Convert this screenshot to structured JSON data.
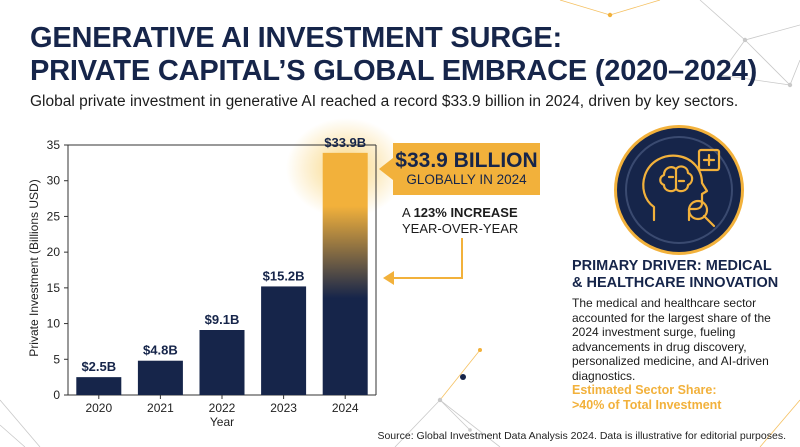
{
  "header": {
    "title_line1": "GENERATIVE AI INVESTMENT SURGE:",
    "title_line2": "PRIVATE CAPITAL’S GLOBAL EMBRACE (2020–2024)",
    "subtitle": "Global private investment in generative AI reached a record $33.9 billion in 2024, driven by key sectors."
  },
  "chart_data": {
    "type": "bar",
    "categories": [
      "2020",
      "2021",
      "2022",
      "2023",
      "2024"
    ],
    "values": [
      2.5,
      4.8,
      9.1,
      15.2,
      33.9
    ],
    "data_labels": [
      "$2.5B",
      "$4.8B",
      "$9.1B",
      "$15.2B",
      "$33.9B"
    ],
    "xlabel": "Year",
    "ylabel": "Private Investment (Billions USD)",
    "ylim": [
      0,
      35
    ],
    "yticks": [
      0,
      5,
      10,
      15,
      20,
      25,
      30,
      35
    ],
    "grid": false,
    "colors": {
      "bar": "#16254a",
      "highlight": "#f2b13b"
    }
  },
  "callout": {
    "main": "$33.9 BILLION",
    "sub": "GLOBALLY IN 2024",
    "increase_prefix": "A ",
    "increase_bold": "123% INCREASE",
    "increase_line2": "YEAR-OVER-YEAR"
  },
  "driver": {
    "icon": "head-brain-medical-icon",
    "title_line1": "PRIMARY DRIVER: MEDICAL",
    "title_line2": "& HEALTHCARE INNOVATION",
    "body": "The medical and healthcare sector accounted for the largest share of the 2024 investment surge, fueling advancements in drug discovery, personalized medicine, and AI-driven diagnostics.",
    "share_line1": "Estimated Sector Share:",
    "share_line2": ">40% of Total Investment"
  },
  "source": "Source: Global Investment Data Analysis 2024. Data is illustrative for editorial purposes.",
  "colors": {
    "navy": "#16254a",
    "gold": "#f2b13b",
    "text": "#1c1c1c"
  }
}
